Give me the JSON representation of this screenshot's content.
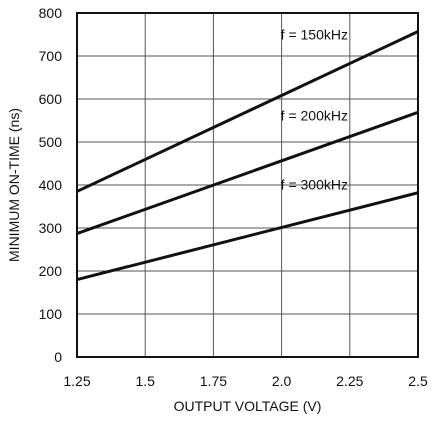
{
  "chart_data": {
    "type": "line",
    "title": "",
    "xlabel": "OUTPUT VOLTAGE (V)",
    "ylabel": "MINIMUM ON-TIME (ns)",
    "xlim": [
      1.25,
      2.5
    ],
    "ylim": [
      0,
      800
    ],
    "x_ticks": [
      1.25,
      1.5,
      1.75,
      2.0,
      2.25,
      2.5
    ],
    "x_tick_labels": [
      "1.25",
      "1.5",
      "1.75",
      "2.0",
      "2.25",
      "2.5"
    ],
    "y_ticks": [
      0,
      100,
      200,
      300,
      400,
      500,
      600,
      700,
      800
    ],
    "y_tick_labels": [
      "0",
      "100",
      "200",
      "300",
      "400",
      "500",
      "600",
      "700",
      "800"
    ],
    "grid": true,
    "legend": "inline",
    "series": [
      {
        "name": "f = 150kHz",
        "x": [
          1.25,
          2.5
        ],
        "y": [
          385,
          757
        ]
      },
      {
        "name": "f = 200kHz",
        "x": [
          1.25,
          2.5
        ],
        "y": [
          287,
          569
        ]
      },
      {
        "name": "f = 300kHz",
        "x": [
          1.25,
          2.5
        ],
        "y": [
          180,
          382
        ]
      }
    ],
    "colors": {
      "line": "#111111",
      "grid": "#555555",
      "frame": "#111111"
    }
  }
}
